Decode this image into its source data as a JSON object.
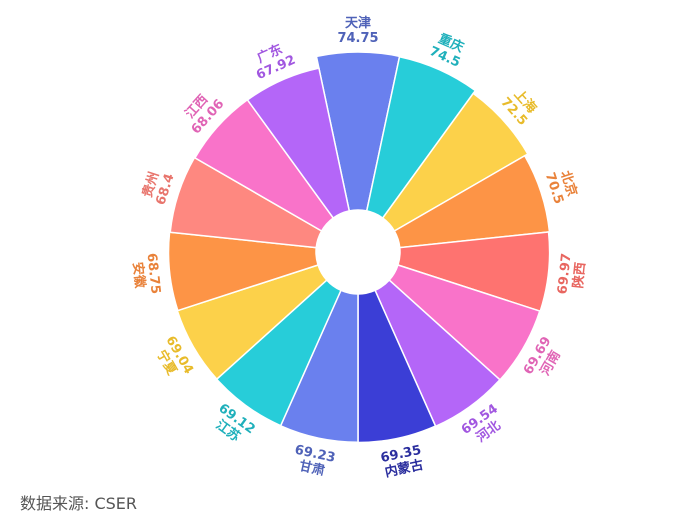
{
  "chart_data": {
    "type": "rose",
    "categories": [
      "天津",
      "重庆",
      "上海",
      "北京",
      "陕西",
      "河南",
      "河北",
      "内蒙古",
      "甘肃",
      "江苏",
      "宁夏",
      "安徽",
      "贵州",
      "江西",
      "广东"
    ],
    "values": [
      74.75,
      74.5,
      72.5,
      70.5,
      69.97,
      69.69,
      69.54,
      69.35,
      69.23,
      69.12,
      69.04,
      68.75,
      68.4,
      68.06,
      67.92
    ],
    "colors": [
      "#6a80ee",
      "#27cdd9",
      "#fcd14a",
      "#fd9446",
      "#fe7370",
      "#f973c9",
      "#b466f8",
      "#3b3ed6",
      "#6a80ee",
      "#27cdd9",
      "#fcd14a",
      "#fd9446",
      "#fe8880",
      "#f973c9",
      "#b466f8"
    ],
    "label_colors": [
      "#4f62b8",
      "#1fb0bb",
      "#e8bb2a",
      "#e9823a",
      "#e86660",
      "#e064b5",
      "#a157e0",
      "#2b2e9e",
      "#4f62b8",
      "#1fb0bb",
      "#e8bb2a",
      "#e9823a",
      "#e8756d",
      "#e064b5",
      "#a157e0"
    ]
  },
  "footer": {
    "source": "数据来源: CSER"
  }
}
